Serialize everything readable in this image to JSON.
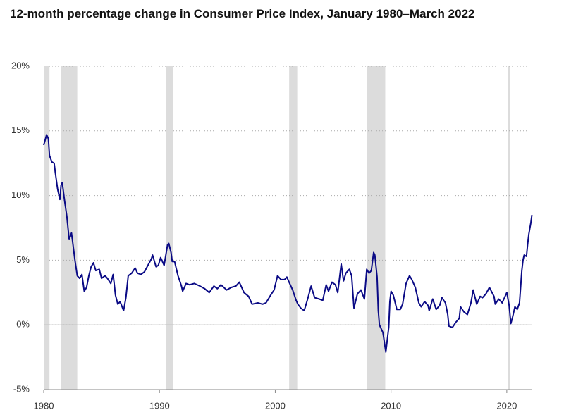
{
  "chart_data": {
    "type": "line",
    "title": "12-month percentage change in Consumer Price Index, January 1980–March 2022",
    "xlim": [
      1980,
      2022.2
    ],
    "xticks": [
      1980,
      1990,
      2000,
      2010,
      2020
    ],
    "ylim": [
      -5,
      20
    ],
    "yticks": [
      {
        "value": -5,
        "label": "-5%"
      },
      {
        "value": 0,
        "label": "0%"
      },
      {
        "value": 5,
        "label": "5%"
      },
      {
        "value": 10,
        "label": "10%"
      },
      {
        "value": 15,
        "label": "15%"
      },
      {
        "value": 20,
        "label": "20%"
      }
    ],
    "grid": true,
    "shading_color": "#dcdcdc",
    "shaded_ranges": [
      [
        1980.0,
        1980.5
      ],
      [
        1981.5,
        1982.9
      ],
      [
        1990.55,
        1991.2
      ],
      [
        2001.2,
        2001.9
      ],
      [
        2007.95,
        2009.5
      ],
      [
        2020.1,
        2020.3
      ]
    ],
    "x": [
      1980.0,
      1980.1,
      1980.25,
      1980.4,
      1980.5,
      1980.7,
      1980.9,
      1981.0,
      1981.2,
      1981.4,
      1981.5,
      1981.6,
      1981.8,
      1982.0,
      1982.2,
      1982.4,
      1982.5,
      1982.7,
      1982.9,
      1983.1,
      1983.3,
      1983.5,
      1983.7,
      1983.9,
      1984.1,
      1984.3,
      1984.5,
      1984.8,
      1985.0,
      1985.3,
      1985.5,
      1985.8,
      1986.0,
      1986.2,
      1986.4,
      1986.6,
      1986.9,
      1987.1,
      1987.3,
      1987.6,
      1987.9,
      1988.1,
      1988.4,
      1988.7,
      1989.0,
      1989.3,
      1989.4,
      1989.7,
      1989.9,
      1990.1,
      1990.4,
      1990.7,
      1990.8,
      1991.0,
      1991.1,
      1991.3,
      1991.6,
      1991.9,
      1992.0,
      1992.3,
      1992.6,
      1993.0,
      1993.5,
      1993.9,
      1994.3,
      1994.7,
      1995.0,
      1995.3,
      1995.8,
      1996.2,
      1996.6,
      1996.9,
      1997.3,
      1997.7,
      1998.0,
      1998.5,
      1998.9,
      1999.2,
      1999.6,
      1999.9,
      2000.2,
      2000.5,
      2000.8,
      2001.0,
      2001.2,
      2001.5,
      2001.8,
      2001.95,
      2002.2,
      2002.5,
      2002.8,
      2003.1,
      2003.4,
      2003.8,
      2004.1,
      2004.4,
      2004.6,
      2004.9,
      2005.2,
      2005.4,
      2005.7,
      2005.9,
      2006.1,
      2006.4,
      2006.6,
      2006.8,
      2007.1,
      2007.4,
      2007.7,
      2007.9,
      2008.1,
      2008.3,
      2008.5,
      2008.6,
      2008.8,
      2008.9,
      2009.0,
      2009.3,
      2009.55,
      2009.8,
      2009.9,
      2010.0,
      2010.2,
      2010.5,
      2010.8,
      2011.0,
      2011.3,
      2011.6,
      2011.8,
      2012.1,
      2012.4,
      2012.6,
      2012.9,
      2013.2,
      2013.3,
      2013.6,
      2013.9,
      2014.2,
      2014.4,
      2014.7,
      2014.9,
      2015.0,
      2015.3,
      2015.6,
      2015.9,
      2016.0,
      2016.3,
      2016.6,
      2016.9,
      2017.1,
      2017.4,
      2017.7,
      2017.9,
      2018.2,
      2018.5,
      2018.9,
      2019.0,
      2019.3,
      2019.6,
      2019.9,
      2020.0,
      2020.2,
      2020.35,
      2020.5,
      2020.7,
      2020.9,
      2021.1,
      2021.3,
      2021.4,
      2021.5,
      2021.7,
      2021.8,
      2021.9,
      2022.0,
      2022.08,
      2022.17
    ],
    "series": [
      {
        "color": "#0a0a85",
        "values": [
          13.9,
          14.2,
          14.7,
          14.4,
          13.1,
          12.6,
          12.5,
          11.8,
          10.5,
          9.7,
          10.8,
          11.0,
          9.6,
          8.4,
          6.6,
          7.1,
          6.4,
          5.0,
          3.8,
          3.6,
          3.9,
          2.6,
          2.9,
          3.8,
          4.5,
          4.8,
          4.2,
          4.3,
          3.6,
          3.8,
          3.6,
          3.2,
          3.9,
          2.3,
          1.6,
          1.8,
          1.1,
          2.1,
          3.8,
          4.0,
          4.4,
          4.0,
          3.9,
          4.1,
          4.6,
          5.1,
          5.4,
          4.5,
          4.6,
          5.2,
          4.6,
          6.2,
          6.3,
          5.6,
          4.9,
          4.9,
          3.8,
          3.0,
          2.6,
          3.2,
          3.1,
          3.2,
          3.0,
          2.8,
          2.5,
          3.0,
          2.8,
          3.1,
          2.7,
          2.9,
          3.0,
          3.3,
          2.5,
          2.2,
          1.6,
          1.7,
          1.6,
          1.7,
          2.3,
          2.7,
          3.8,
          3.5,
          3.5,
          3.7,
          3.3,
          2.7,
          1.9,
          1.6,
          1.3,
          1.1,
          2.0,
          3.0,
          2.1,
          2.0,
          1.9,
          3.1,
          2.6,
          3.3,
          3.1,
          2.5,
          4.7,
          3.4,
          4.0,
          4.3,
          3.8,
          1.3,
          2.4,
          2.7,
          2.0,
          4.3,
          4.0,
          4.2,
          5.6,
          5.4,
          3.7,
          1.1,
          0.0,
          -0.6,
          -2.1,
          -0.2,
          1.8,
          2.6,
          2.3,
          1.2,
          1.2,
          1.6,
          3.2,
          3.8,
          3.5,
          2.9,
          1.7,
          1.4,
          1.8,
          1.5,
          1.1,
          2.0,
          1.2,
          1.5,
          2.1,
          1.7,
          0.8,
          -0.1,
          -0.2,
          0.2,
          0.5,
          1.4,
          1.0,
          0.8,
          1.7,
          2.7,
          1.6,
          2.2,
          2.1,
          2.4,
          2.9,
          2.2,
          1.6,
          2.0,
          1.7,
          2.3,
          2.5,
          1.5,
          0.1,
          0.6,
          1.4,
          1.2,
          1.7,
          4.2,
          5.0,
          5.4,
          5.3,
          6.2,
          7.0,
          7.5,
          7.9,
          8.5
        ]
      }
    ]
  }
}
